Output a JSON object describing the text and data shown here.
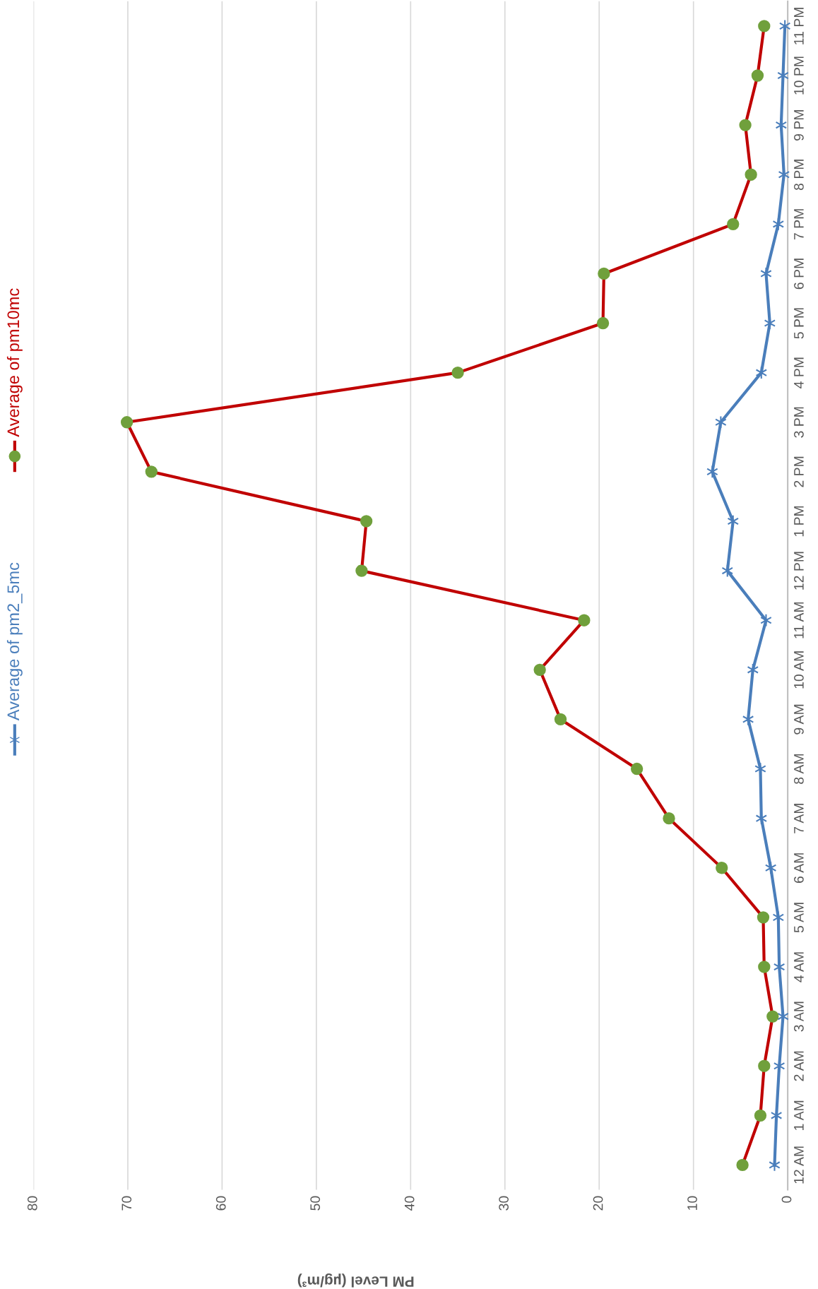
{
  "chart_data": {
    "type": "line",
    "orientation": "horizontal",
    "xlabel": "PM Level (µg/m³)",
    "categories": [
      "11 PM",
      "10 PM",
      "9 PM",
      "8 PM",
      "7 PM",
      "6 PM",
      "5 PM",
      "4 PM",
      "3 PM",
      "2 PM",
      "1 PM",
      "12 PM",
      "11 AM",
      "10 AM",
      "9 AM",
      "8 AM",
      "7 AM",
      "6 AM",
      "5 AM",
      "4 AM",
      "3 AM",
      "2 AM",
      "1 AM",
      "12 AM"
    ],
    "series": [
      {
        "name": "Average of pm2_5mc",
        "color": "#4a7ebb",
        "marker": "cross",
        "values": [
          0.3,
          0.5,
          0.7,
          0.4,
          1.0,
          2.3,
          1.9,
          2.8,
          7.1,
          8.0,
          5.8,
          6.4,
          2.3,
          3.7,
          4.2,
          2.9,
          2.8,
          1.8,
          1.0,
          0.9,
          0.5,
          0.9,
          1.2,
          1.4
        ]
      },
      {
        "name": "Average of pm10mc",
        "color": "#c00000",
        "marker": "circle",
        "values": [
          2.5,
          3.2,
          4.5,
          3.9,
          5.8,
          19.5,
          19.6,
          35.0,
          70.1,
          67.5,
          44.7,
          45.2,
          21.6,
          26.3,
          24.1,
          16.0,
          12.6,
          7.0,
          2.6,
          2.5,
          1.6,
          2.5,
          2.9,
          4.8
        ]
      }
    ],
    "xlim": [
      80,
      0
    ],
    "xticks": [
      0,
      10,
      20,
      30,
      40,
      50,
      60,
      70,
      80
    ],
    "grid": "x",
    "legend": "left",
    "line_style": "solid"
  }
}
